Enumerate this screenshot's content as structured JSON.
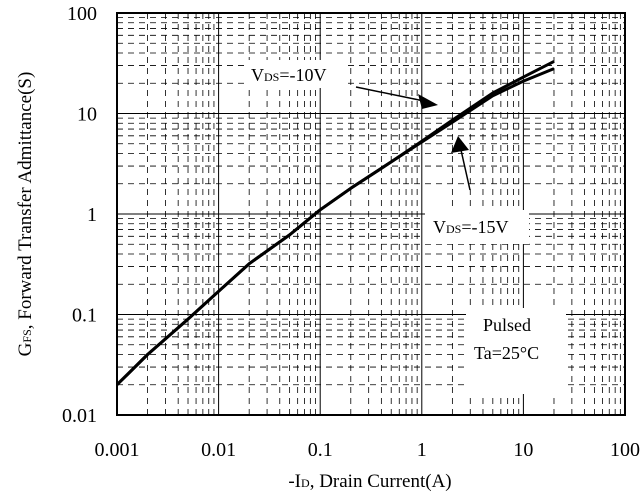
{
  "chart_data": {
    "type": "line",
    "title": "",
    "xlabel": "-ID, Drain Current(A)",
    "xlabel_parts": {
      "prefix": "-I",
      "sub": "D",
      "suffix": ", Drain Current(A)"
    },
    "ylabel": "GFS, Forward Transfer Admittance(S)",
    "ylabel_parts": {
      "prefix": "G",
      "sub": "FS",
      "suffix": ", Forward Transfer Admittance(S)"
    },
    "x_scale": "log",
    "y_scale": "log",
    "xlim": [
      0.001,
      100
    ],
    "ylim": [
      0.01,
      100
    ],
    "x_ticks": [
      "0.001",
      "0.01",
      "0.1",
      "1",
      "10",
      "100"
    ],
    "y_ticks": [
      "100",
      "10",
      "1",
      "0.1",
      "0.01"
    ],
    "grid": true,
    "line_color": "#000000",
    "series": [
      {
        "name": "VDS=-10V",
        "x": [
          0.001,
          0.002,
          0.005,
          0.01,
          0.02,
          0.05,
          0.1,
          0.2,
          0.5,
          1,
          2,
          5,
          10,
          20
        ],
        "y": [
          0.02,
          0.04,
          0.09,
          0.17,
          0.32,
          0.62,
          1.1,
          1.8,
          3.3,
          5.2,
          8.2,
          15,
          21,
          28
        ]
      },
      {
        "name": "VDS=-15V",
        "x": [
          0.001,
          0.002,
          0.005,
          0.01,
          0.02,
          0.05,
          0.1,
          0.2,
          0.5,
          1,
          2,
          5,
          10,
          20
        ],
        "y": [
          0.02,
          0.04,
          0.09,
          0.17,
          0.32,
          0.62,
          1.1,
          1.8,
          3.3,
          5.3,
          8.6,
          16,
          23,
          33
        ]
      }
    ],
    "annotations": {
      "label_10v": {
        "prefix": "V",
        "sub": "DS",
        "suffix": "=-10V"
      },
      "label_15v": {
        "prefix": "V",
        "sub": "DS",
        "suffix": "=-15V"
      },
      "pulsed": "Pulsed",
      "ta": "Ta=25°C"
    }
  }
}
